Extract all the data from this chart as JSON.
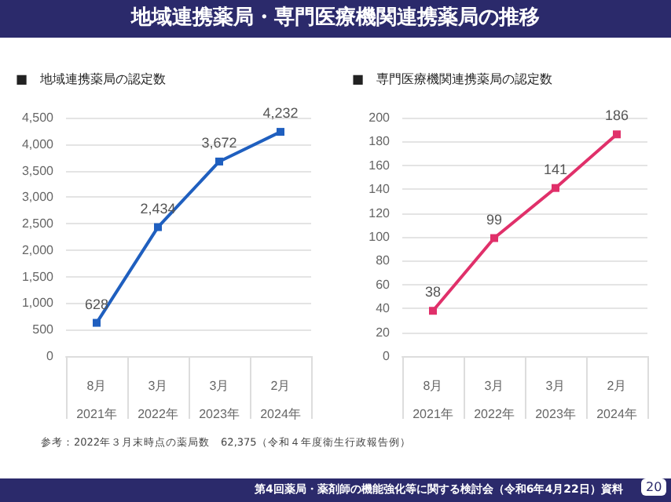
{
  "chart_data": [
    {
      "type": "line",
      "title": "地域連携薬局・専門医療機関連携薬局の推移",
      "subtitle": "■　地域連携薬局の認定数",
      "categories": [
        "8月\n2021年",
        "3月\n2022年",
        "3月\n2023年",
        "2月\n2024年"
      ],
      "series": [
        {
          "color": "#1f5fbf",
          "values": [
            628,
            2434,
            3672,
            4232
          ],
          "value_labels": [
            "628",
            "2,434",
            "3,672",
            "4,232"
          ]
        }
      ],
      "ylim": [
        0,
        4500
      ],
      "yticks": [
        0,
        500,
        {
          "value": 1000,
          "label": "1,000"
        },
        {
          "value": 1500,
          "label": "1,500"
        },
        {
          "value": 2000,
          "label": "2,000"
        },
        {
          "value": 2500,
          "label": "2,500"
        },
        {
          "value": 3000,
          "label": "3,000"
        },
        {
          "value": 3500,
          "label": "3,500"
        },
        {
          "value": 4000,
          "label": "4,000"
        },
        {
          "value": 4500,
          "label": "4,500"
        }
      ],
      "grid": "y",
      "marker": "square",
      "annotations": [
        "参考：2022年３月末時点の薬局数　62,375（令和４年度衛生行政報告例）",
        "第4回薬局・薬剤師の機能強化等に関する検討会（令和6年4月22日）資料",
        "20"
      ]
    },
    {
      "type": "line",
      "subtitle": "■　専門医療機関連携薬局の認定数",
      "categories": [
        "8月\n2021年",
        "3月\n2022年",
        "3月\n2023年",
        "2月\n2024年"
      ],
      "series": [
        {
          "color": "#e0306a",
          "values": [
            38,
            99,
            141,
            186
          ]
        }
      ],
      "ylim": [
        0,
        200
      ],
      "yticks": [
        0,
        20,
        40,
        60,
        80,
        100,
        120,
        140,
        160,
        180,
        200
      ],
      "grid": "y",
      "data_labels": true,
      "marker": "square"
    }
  ]
}
